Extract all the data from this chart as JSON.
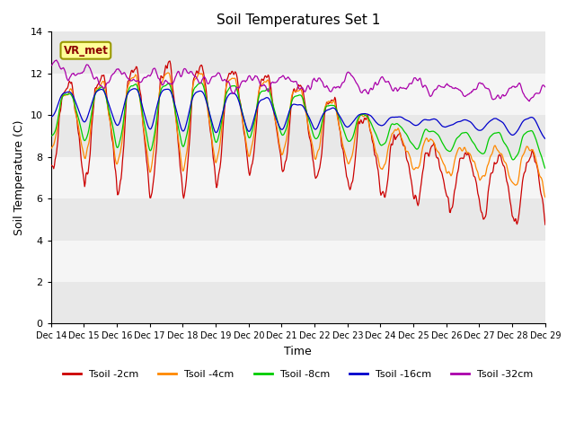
{
  "title": "Soil Temperatures Set 1",
  "xlabel": "Time",
  "ylabel": "Soil Temperature (C)",
  "ylim": [
    0,
    14
  ],
  "yticks": [
    0,
    2,
    4,
    6,
    8,
    10,
    12,
    14
  ],
  "n_days": 15,
  "start_day": 14,
  "colors": {
    "Tsoil -2cm": "#cc0000",
    "Tsoil -4cm": "#ff8800",
    "Tsoil -8cm": "#00cc00",
    "Tsoil -16cm": "#0000cc",
    "Tsoil -32cm": "#aa00aa"
  },
  "legend_labels": [
    "Tsoil -2cm",
    "Tsoil -4cm",
    "Tsoil -8cm",
    "Tsoil -16cm",
    "Tsoil -32cm"
  ],
  "annotation_text": "VR_met",
  "annotation_box_color": "#ffff99",
  "annotation_border_color": "#999900",
  "annotation_text_color": "#8b0000",
  "bg_bands": [
    [
      0,
      2,
      "#e8e8e8"
    ],
    [
      2,
      4,
      "#f5f5f5"
    ],
    [
      4,
      6,
      "#e8e8e8"
    ],
    [
      6,
      8,
      "#f5f5f5"
    ],
    [
      8,
      10,
      "#e8e8e8"
    ],
    [
      10,
      12,
      "#f5f5f5"
    ],
    [
      12,
      14,
      "#e8e8e8"
    ]
  ],
  "points_per_day": 48
}
